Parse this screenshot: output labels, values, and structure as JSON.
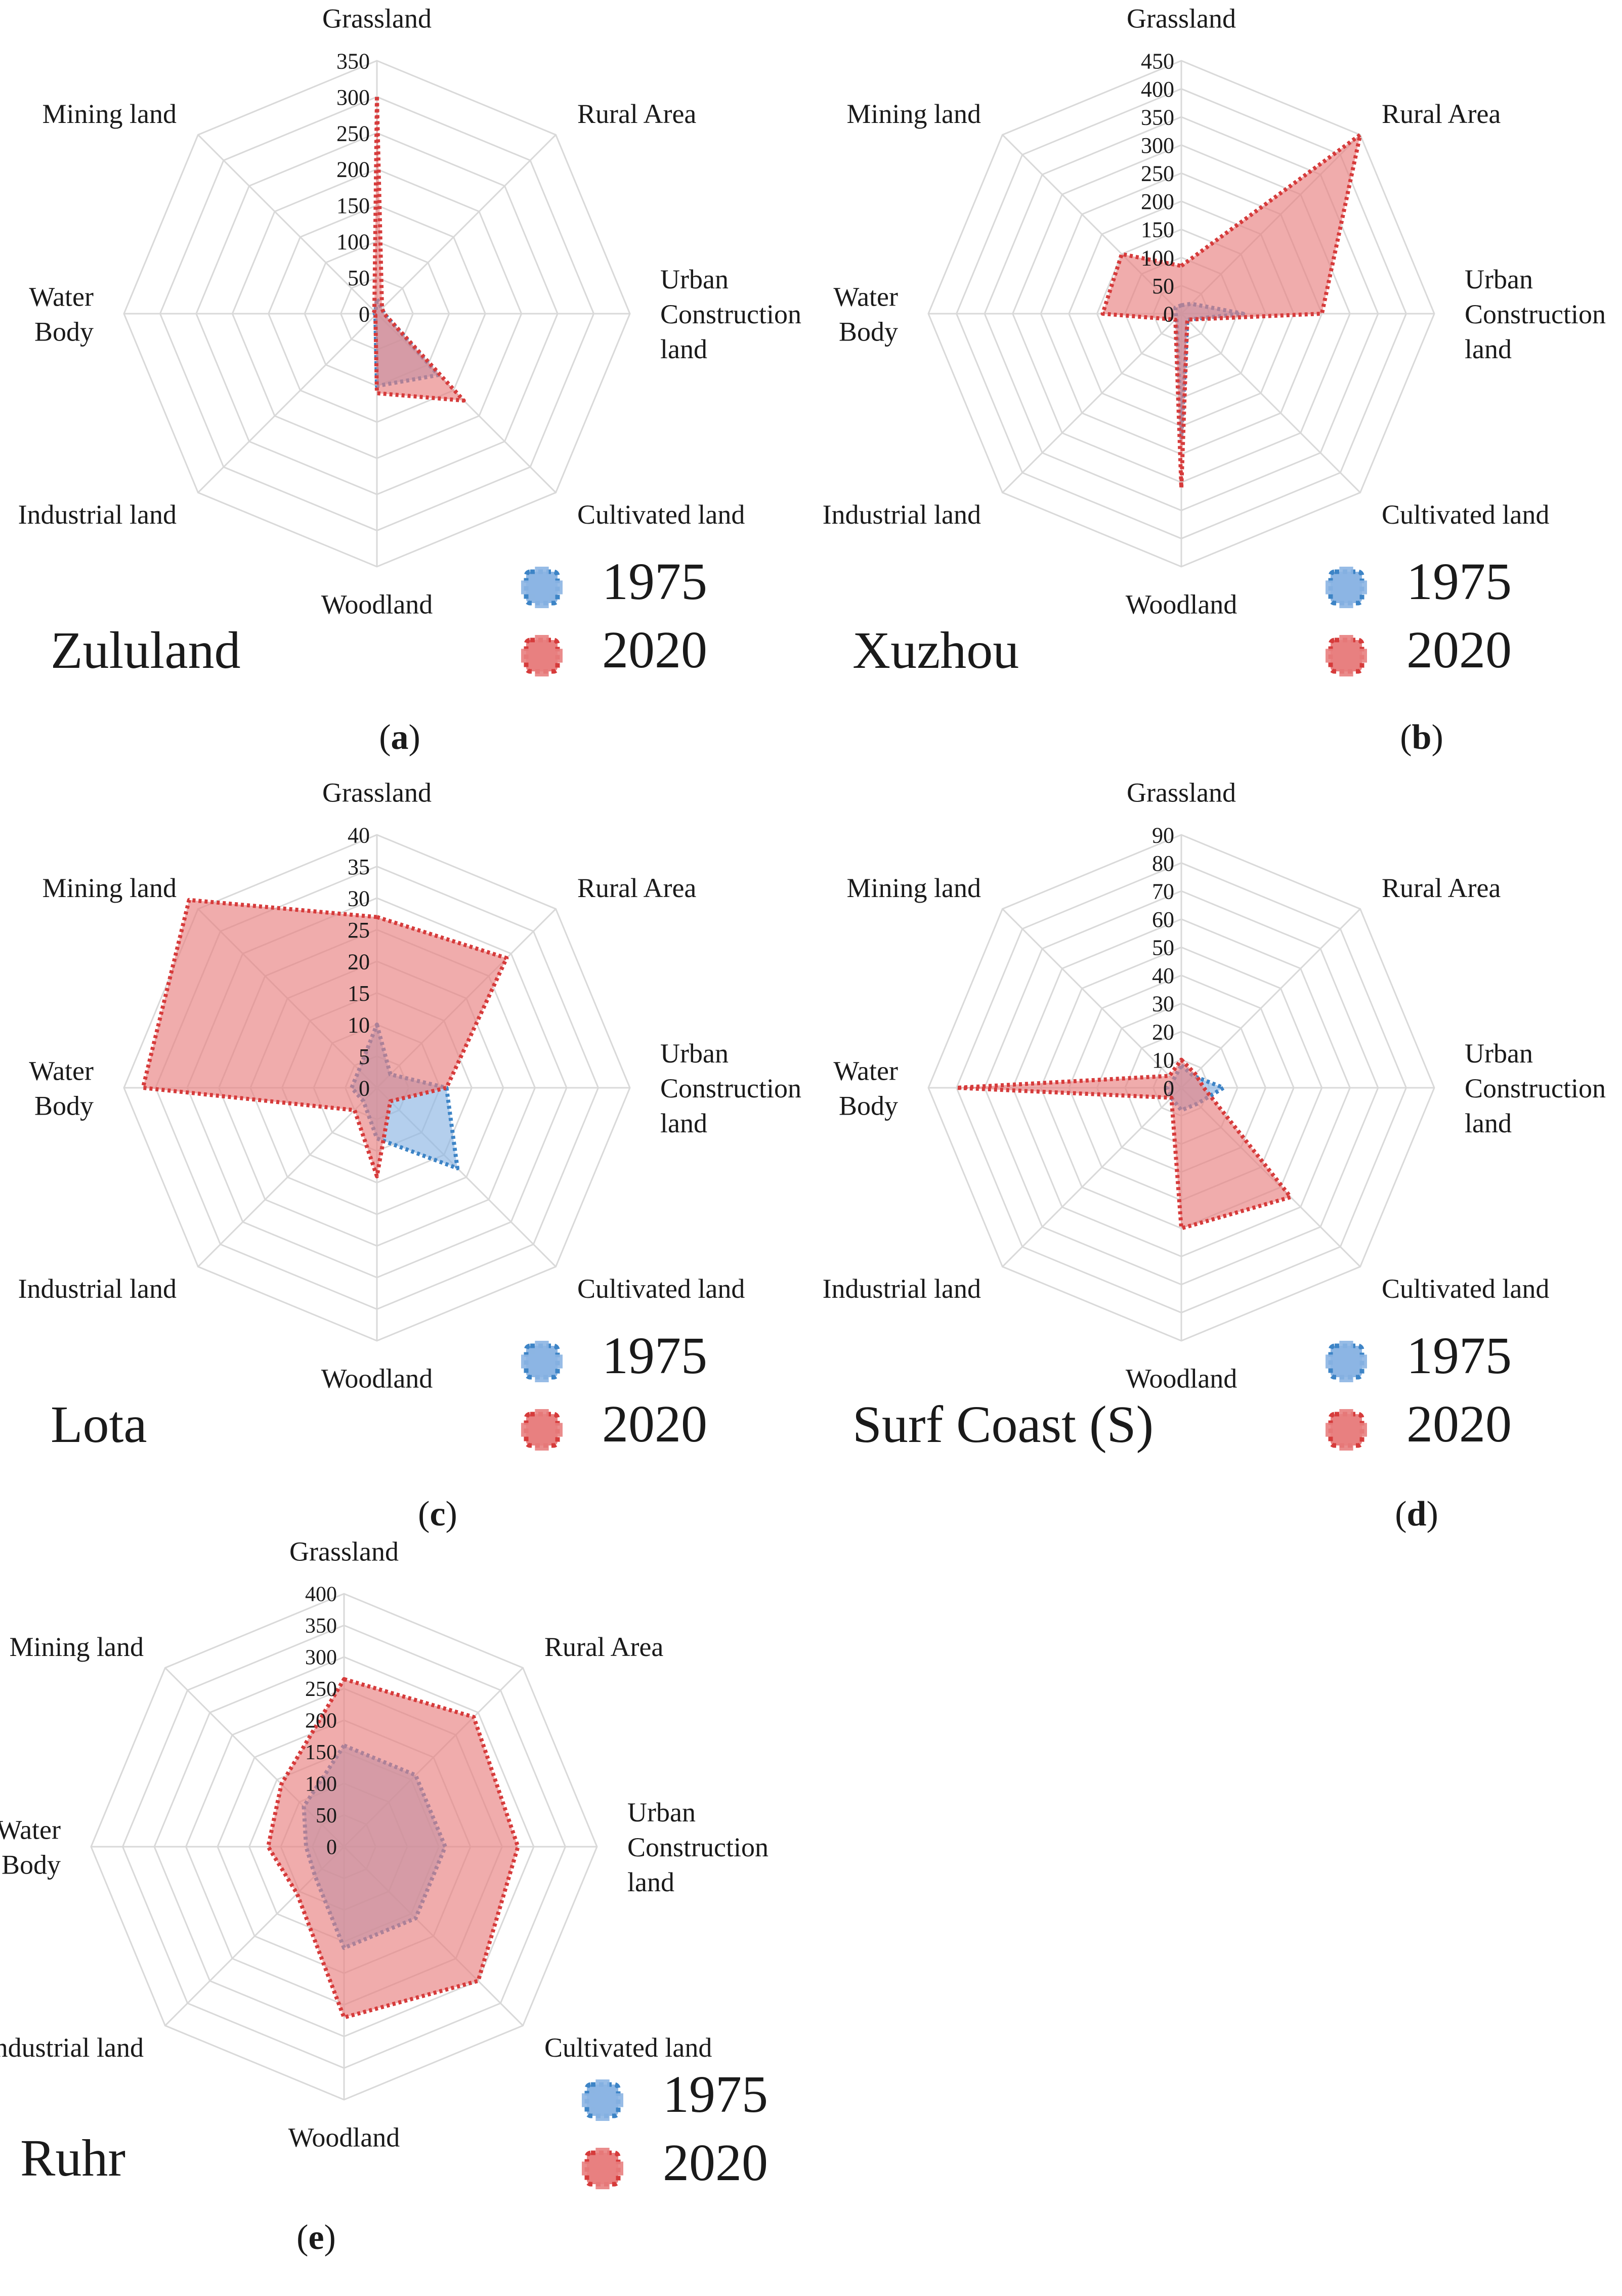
{
  "chart_data": [
    {
      "type": "radar",
      "panel_label": "a",
      "title": "Zululand",
      "axes": [
        "Grassland",
        "Rural Area",
        "Urban Construction land",
        "Cultivated land",
        "Woodland",
        "Industrial land",
        "Water Body",
        "Mining land"
      ],
      "ticks": [
        0,
        50,
        100,
        150,
        200,
        250,
        300,
        350
      ],
      "tick_labels": [
        "0",
        "50",
        "100",
        "150",
        "200",
        "250",
        "300",
        "350"
      ],
      "rmax": 350,
      "series": [
        {
          "name": "1975",
          "values": [
            20,
            10,
            10,
            120,
            100,
            3,
            3,
            3
          ]
        },
        {
          "name": "2020",
          "values": [
            300,
            10,
            10,
            170,
            110,
            3,
            5,
            5
          ]
        }
      ],
      "legend": [
        "1975",
        "2020"
      ]
    },
    {
      "type": "radar",
      "panel_label": "b",
      "title": "Xuzhou",
      "axes": [
        "Grassland",
        "Rural Area",
        "Urban Construction land",
        "Cultivated land",
        "Woodland",
        "Industrial land",
        "Water Body",
        "Mining land"
      ],
      "ticks": [
        0,
        50,
        100,
        150,
        200,
        250,
        300,
        350,
        400,
        450
      ],
      "tick_labels": [
        "0",
        "50",
        "100",
        "150",
        "200",
        "250",
        "300",
        "350",
        "400",
        "450"
      ],
      "rmax": 450,
      "series": [
        {
          "name": "1975",
          "values": [
            15,
            25,
            110,
            15,
            220,
            12,
            10,
            15
          ]
        },
        {
          "name": "2020",
          "values": [
            85,
            450,
            250,
            15,
            310,
            15,
            140,
            150
          ]
        }
      ],
      "legend": [
        "1975",
        "2020"
      ]
    },
    {
      "type": "radar",
      "panel_label": "c",
      "title": "Lota",
      "axes": [
        "Grassland",
        "Rural Area",
        "Urban Construction land",
        "Cultivated land",
        "Woodland",
        "Industrial land",
        "Water Body",
        "Mining land"
      ],
      "ticks": [
        0,
        5,
        10,
        15,
        20,
        25,
        30,
        35,
        40
      ],
      "tick_labels": [
        "0",
        "5",
        "10",
        "15",
        "20",
        "25",
        "30",
        "35",
        "40"
      ],
      "rmax": 40,
      "series": [
        {
          "name": "1975",
          "values": [
            10,
            3,
            11,
            18,
            8,
            3,
            4,
            4
          ]
        },
        {
          "name": "2020",
          "values": [
            27,
            29,
            11,
            3,
            14,
            5,
            37,
            42
          ]
        }
      ],
      "legend": [
        "1975",
        "2020"
      ]
    },
    {
      "type": "radar",
      "panel_label": "d",
      "title": "Surf Coast (S)",
      "axes": [
        "Grassland",
        "Rural Area",
        "Urban Construction land",
        "Cultivated land",
        "Woodland",
        "Industrial land",
        "Water Body",
        "Mining land"
      ],
      "ticks": [
        0,
        10,
        20,
        30,
        40,
        50,
        60,
        70,
        80,
        90
      ],
      "tick_labels": [
        "0",
        "10",
        "20",
        "30",
        "40",
        "50",
        "60",
        "70",
        "80",
        "90"
      ],
      "rmax": 90,
      "series": [
        {
          "name": "1975",
          "values": [
            8,
            6,
            15,
            8,
            8,
            5,
            5,
            4
          ]
        },
        {
          "name": "2020",
          "values": [
            10,
            7,
            8,
            55,
            50,
            5,
            80,
            6
          ]
        }
      ],
      "legend": [
        "1975",
        "2020"
      ]
    },
    {
      "type": "radar",
      "panel_label": "e",
      "title": "Ruhr",
      "axes": [
        "Grassland",
        "Rural Area",
        "Urban Construction land",
        "Cultivated land",
        "Woodland",
        "Industrial land",
        "Water Body",
        "Mining land"
      ],
      "ticks": [
        0,
        50,
        100,
        150,
        200,
        250,
        300,
        350,
        400
      ],
      "tick_labels": [
        "0",
        "50",
        "100",
        "150",
        "200",
        "250",
        "300",
        "350",
        "400"
      ],
      "rmax": 400,
      "series": [
        {
          "name": "1975",
          "values": [
            160,
            160,
            160,
            160,
            160,
            65,
            60,
            90
          ]
        },
        {
          "name": "2020",
          "values": [
            265,
            290,
            275,
            300,
            270,
            105,
            120,
            140
          ]
        }
      ],
      "legend": [
        "1975",
        "2020"
      ]
    }
  ],
  "style": {
    "series_1975_stroke": "#3d84c6",
    "series_1975_fill": "#8cb5e3",
    "series_2020_stroke": "#d63b3b",
    "series_2020_fill": "#e88080",
    "grid_color": "#d9d9d9"
  }
}
